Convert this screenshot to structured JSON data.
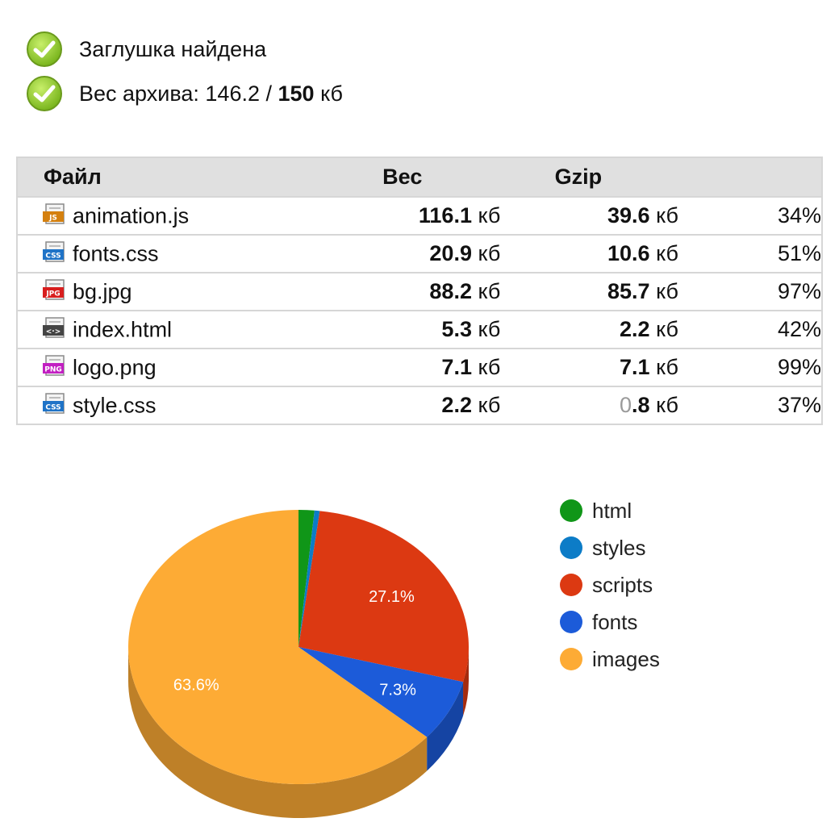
{
  "status": [
    {
      "text": "Заглушка найдена",
      "icon": "check-icon"
    },
    {
      "prefix": "Вес архива: ",
      "current": "146.2",
      "sep": " / ",
      "limit": "150",
      "unit": " кб",
      "icon": "check-icon"
    }
  ],
  "table": {
    "headers": {
      "file": "Файл",
      "size": "Вес",
      "gzip": "Gzip",
      "ratio": ""
    },
    "unit": "кб",
    "rows": [
      {
        "icon": "js-file-icon",
        "icon_text": "JS",
        "icon_color": "#d4800f",
        "name": "animation.js",
        "size": "116.1",
        "gzip": "39.6",
        "ratio": "34%"
      },
      {
        "icon": "css-file-icon",
        "icon_text": "CSS",
        "icon_color": "#1f73c7",
        "name": "fonts.css",
        "size": "20.9",
        "gzip": "10.6",
        "ratio": "51%"
      },
      {
        "icon": "jpg-file-icon",
        "icon_text": "JPG",
        "icon_color": "#d81e1e",
        "name": "bg.jpg",
        "size": "88.2",
        "gzip": "85.7",
        "ratio": "97%"
      },
      {
        "icon": "html-file-icon",
        "icon_text": "<·>",
        "icon_color": "#444444",
        "name": "index.html",
        "size": "5.3",
        "gzip": "2.2",
        "ratio": "42%"
      },
      {
        "icon": "png-file-icon",
        "icon_text": "PNG",
        "icon_color": "#c21fc2",
        "name": "logo.png",
        "size": "7.1",
        "gzip": "7.1",
        "ratio": "99%"
      },
      {
        "icon": "css-file-icon",
        "icon_text": "CSS",
        "icon_color": "#1f73c7",
        "name": "style.css",
        "size": "2.2",
        "gzip_dim": "0",
        "gzip": ".8",
        "ratio": "37%"
      }
    ]
  },
  "chart_data": {
    "type": "pie",
    "three_d": true,
    "title": "",
    "legend_position": "right",
    "series": [
      {
        "name": "html",
        "value": 1.5,
        "color": "#109618",
        "show_label": false
      },
      {
        "name": "styles",
        "value": 0.5,
        "color": "#0c7cc7",
        "show_label": false
      },
      {
        "name": "scripts",
        "value": 27.1,
        "color": "#dc3912",
        "label": "27.1%",
        "show_label": true
      },
      {
        "name": "fonts",
        "value": 7.3,
        "color": "#1c5bd9",
        "label": "7.3%",
        "show_label": true
      },
      {
        "name": "images",
        "value": 63.6,
        "color": "#fdab35",
        "label": "63.6%",
        "show_label": true
      }
    ]
  }
}
